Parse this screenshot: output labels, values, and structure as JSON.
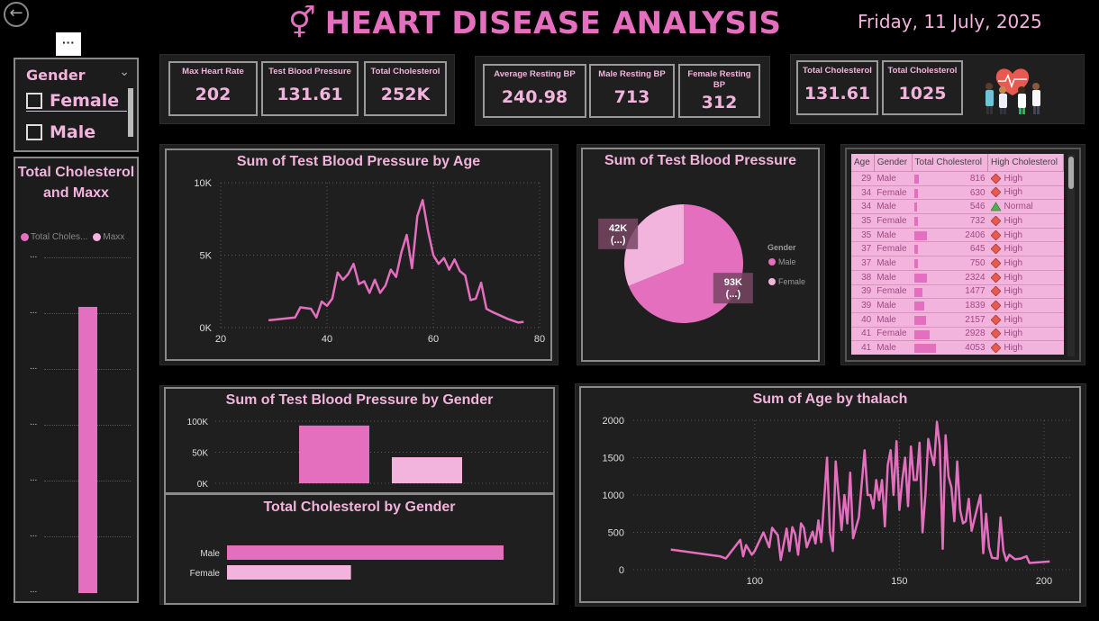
{
  "header": {
    "back_icon": "back-arrow-icon",
    "gender_icon": "⚥",
    "title": "HEART DISEASE ANALYSIS",
    "date": "Friday, 11 July, 2025"
  },
  "slicer": {
    "more_options": "···",
    "title": "Gender",
    "items": [
      {
        "label": "Female",
        "checked": false
      },
      {
        "label": "Male",
        "checked": false
      }
    ]
  },
  "left_chart": {
    "title": "Total Cholesterol and Maxx",
    "legend": [
      "Total Choles...",
      "Maxx"
    ],
    "tick_label": "...",
    "colors": {
      "total_cholesterol": "#e56fbf",
      "maxx": "#f2b3dc"
    },
    "bar_fraction": 0.96
  },
  "kpi_group1": [
    {
      "label": "Max Heart Rate",
      "value": "202"
    },
    {
      "label": "Test Blood Pressure",
      "value": "131.61"
    },
    {
      "label": "Total Cholesterol",
      "value": "252K"
    }
  ],
  "kpi_group2": [
    {
      "label": "Average Resting BP",
      "value": "240.98"
    },
    {
      "label": "Male Resting BP",
      "value": "713"
    },
    {
      "label": "Female Resting BP",
      "value": "312"
    }
  ],
  "kpi_group3": [
    {
      "label": "Total Cholesterol",
      "value": "131.61"
    },
    {
      "label": "Total Cholesterol",
      "value": "1025"
    }
  ],
  "charts": {
    "bp_by_age": {
      "title": "Sum of Test Blood Pressure by Age"
    },
    "bp_pie": {
      "title": "Sum of Test Blood Pressure",
      "legend_title": "Gender"
    },
    "bp_by_gender": {
      "title": "Sum of Test Blood Pressure by Gender"
    },
    "chol_by_gender": {
      "title": "Total Cholesterol by Gender"
    },
    "age_by_thalach": {
      "title": "Sum of Age by thalach"
    }
  },
  "table": {
    "headers": [
      "Age",
      "Gender",
      "Total Cholesterol",
      "High Cholesterol"
    ],
    "rows": [
      {
        "age": "29",
        "gender": "Male",
        "tc": "816",
        "tc_num": 816,
        "hc": "High"
      },
      {
        "age": "34",
        "gender": "Female",
        "tc": "630",
        "tc_num": 630,
        "hc": "High"
      },
      {
        "age": "34",
        "gender": "Male",
        "tc": "546",
        "tc_num": 546,
        "hc": "Normal"
      },
      {
        "age": "35",
        "gender": "Female",
        "tc": "732",
        "tc_num": 732,
        "hc": "High"
      },
      {
        "age": "35",
        "gender": "Male",
        "tc": "2406",
        "tc_num": 2406,
        "hc": "High"
      },
      {
        "age": "37",
        "gender": "Female",
        "tc": "645",
        "tc_num": 645,
        "hc": "High"
      },
      {
        "age": "37",
        "gender": "Male",
        "tc": "750",
        "tc_num": 750,
        "hc": "High"
      },
      {
        "age": "38",
        "gender": "Male",
        "tc": "2324",
        "tc_num": 2324,
        "hc": "High"
      },
      {
        "age": "39",
        "gender": "Female",
        "tc": "1477",
        "tc_num": 1477,
        "hc": "High"
      },
      {
        "age": "39",
        "gender": "Male",
        "tc": "1839",
        "tc_num": 1839,
        "hc": "High"
      },
      {
        "age": "40",
        "gender": "Male",
        "tc": "2157",
        "tc_num": 2157,
        "hc": "High"
      },
      {
        "age": "41",
        "gender": "Female",
        "tc": "2928",
        "tc_num": 2928,
        "hc": "High"
      },
      {
        "age": "41",
        "gender": "Male",
        "tc": "4053",
        "tc_num": 4053,
        "hc": "High"
      }
    ],
    "indicator_colors": {
      "High": "#e8594f",
      "Normal": "#4caf50"
    }
  },
  "chart_data": [
    {
      "type": "line",
      "title": "Sum of Test Blood Pressure by Age",
      "x": [
        29,
        34,
        35,
        37,
        38,
        39,
        40,
        41,
        42,
        43,
        44,
        45,
        46,
        47,
        48,
        49,
        50,
        51,
        52,
        53,
        54,
        55,
        56,
        57,
        58,
        59,
        60,
        61,
        62,
        63,
        64,
        65,
        66,
        67,
        68,
        69,
        70,
        71,
        74,
        76,
        77
      ],
      "y": [
        500,
        700,
        1400,
        1300,
        700,
        1800,
        1500,
        2000,
        3800,
        3300,
        3700,
        4400,
        3000,
        3200,
        2400,
        3300,
        2400,
        2900,
        4000,
        3500,
        5200,
        6400,
        4100,
        7700,
        8800,
        6700,
        5000,
        4400,
        4800,
        4000,
        4700,
        3900,
        3600,
        1900,
        2000,
        3100,
        1300,
        1100,
        600,
        350,
        400
      ],
      "xlim": [
        20,
        80
      ],
      "ylim": [
        0,
        10000
      ],
      "yticks": [
        0,
        5000,
        10000
      ],
      "ytick_labels": [
        "0K",
        "5K",
        "10K"
      ],
      "xticks": [
        20,
        40,
        60,
        80
      ],
      "color": "#e56fbf"
    },
    {
      "type": "pie",
      "title": "Sum of Test Blood Pressure",
      "legend_title": "Gender",
      "slices": [
        {
          "name": "Male",
          "value": 93,
          "label": "93K\n(...)",
          "color": "#e56fbf"
        },
        {
          "name": "Female",
          "value": 42,
          "label": "42K\n(...)",
          "color": "#f2b3dc"
        }
      ]
    },
    {
      "type": "bar",
      "title": "Sum of Test Blood Pressure by Gender",
      "categories": [
        "Male",
        "Female"
      ],
      "values": [
        93000,
        42000
      ],
      "ylim": [
        0,
        100000
      ],
      "yticks": [
        0,
        50000,
        100000
      ],
      "ytick_labels": [
        "0K",
        "50K",
        "100K"
      ],
      "colors": [
        "#e56fbf",
        "#f2b3dc"
      ]
    },
    {
      "type": "bar",
      "orientation": "horizontal",
      "title": "Total Cholesterol by Gender",
      "categories": [
        "Male",
        "Female"
      ],
      "values": [
        174000,
        78000
      ],
      "colors": [
        "#e56fbf",
        "#f2b3dc"
      ]
    },
    {
      "type": "line",
      "title": "Sum of Age by thalach",
      "x": [
        71,
        88,
        90,
        95,
        96,
        97,
        99,
        100,
        103,
        105,
        106,
        108,
        109,
        111,
        112,
        113,
        114,
        115,
        116,
        117,
        118,
        120,
        121,
        122,
        123,
        125,
        126,
        127,
        128,
        130,
        131,
        132,
        133,
        134,
        136,
        138,
        139,
        140,
        141,
        142,
        143,
        144,
        145,
        146,
        147,
        148,
        149,
        150,
        151,
        152,
        153,
        154,
        155,
        156,
        157,
        158,
        159,
        160,
        161,
        162,
        163,
        164,
        165,
        166,
        167,
        168,
        169,
        170,
        171,
        172,
        173,
        174,
        175,
        178,
        179,
        180,
        181,
        182,
        184,
        185,
        186,
        187,
        188,
        190,
        192,
        194,
        195,
        202
      ],
      "y": [
        270,
        180,
        150,
        400,
        180,
        330,
        200,
        250,
        500,
        300,
        560,
        460,
        130,
        550,
        250,
        570,
        470,
        200,
        620,
        560,
        300,
        510,
        350,
        660,
        370,
        1500,
        500,
        250,
        1450,
        530,
        1000,
        620,
        1300,
        420,
        700,
        1600,
        1000,
        1000,
        820,
        1200,
        930,
        1200,
        580,
        1400,
        1600,
        1000,
        1720,
        800,
        1200,
        1500,
        850,
        1650,
        1200,
        1200,
        1700,
        500,
        1000,
        1750,
        1550,
        1400,
        1980,
        1650,
        280,
        1800,
        1250,
        1100,
        650,
        1450,
        800,
        620,
        650,
        950,
        520,
        1000,
        220,
        750,
        300,
        160,
        150,
        700,
        250,
        120,
        200,
        140,
        150,
        180,
        90,
        110
      ],
      "xlim": [
        58,
        210
      ],
      "ylim": [
        0,
        2000
      ],
      "yticks": [
        0,
        500,
        1000,
        1500,
        2000
      ],
      "xticks": [
        100,
        150,
        200
      ],
      "color": "#e56fbf"
    }
  ]
}
